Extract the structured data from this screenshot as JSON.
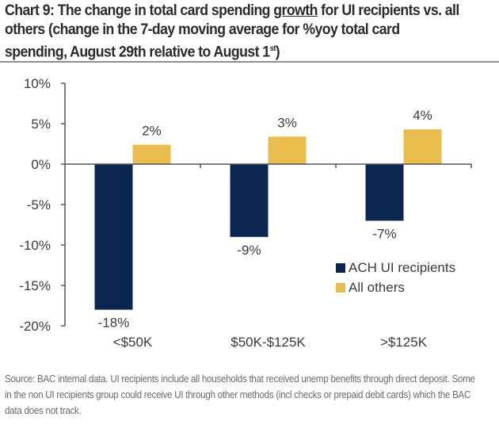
{
  "chart_data": {
    "type": "bar",
    "title_parts": {
      "before": "Chart 9: The change in total card spending ",
      "underlined": "growth",
      "after": " for UI recipients vs. all others (change in the 7-day moving average for %yoy total card spending, August 29th relative to August 1",
      "superscript": "st",
      "end": ")"
    },
    "title": "Chart 9: The change in total card spending growth for UI recipients vs. all others (change in the 7-day moving average for %yoy total card spending, August 29th relative to August 1st)",
    "categories": [
      "<$50K",
      "$50K-$125K",
      ">$125K"
    ],
    "series": [
      {
        "name": "ACH UI recipients",
        "color": "#0b2650",
        "values": [
          -18,
          -9,
          -7
        ],
        "labels": [
          "-18%",
          "-9%",
          "-7%"
        ]
      },
      {
        "name": "All others",
        "color": "#e8bd4c",
        "values": [
          2.4,
          3.4,
          4.3
        ],
        "labels": [
          "2%",
          "3%",
          "4%"
        ]
      }
    ],
    "ylim": [
      -20,
      10
    ],
    "yticks": [
      10,
      5,
      0,
      -5,
      -10,
      -15,
      -20
    ],
    "ytick_labels": [
      "10%",
      "5%",
      "0%",
      "-5%",
      "-10%",
      "-15%",
      "-20%"
    ],
    "xlabel": "",
    "ylabel": "",
    "grid": false,
    "legend_position": "bottom-right"
  },
  "footer": "Source: BAC internal data. UI recipients include all households that received unemp benefits through direct deposit. Some in the non UI recipients group could receive UI through other methods (incl checks or prepaid debit cards) which the BAC data does not track."
}
